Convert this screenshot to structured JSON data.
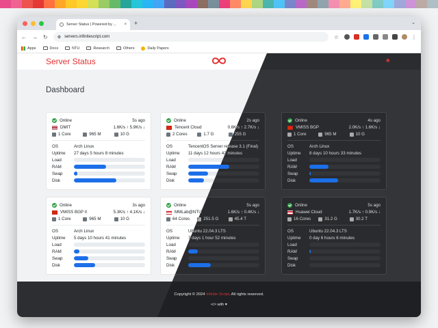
{
  "rainbow": [
    "#e84c8b",
    "#f06292",
    "#ef5350",
    "#e53935",
    "#ff7043",
    "#ffa726",
    "#ffca28",
    "#fdd835",
    "#d4e157",
    "#9ccc65",
    "#66bb6a",
    "#26a69a",
    "#26c6da",
    "#29b6f6",
    "#42a5f5",
    "#5c6bc0",
    "#7e57c2",
    "#ab47bc",
    "#8d6e63",
    "#78909c",
    "#ec407a",
    "#ff8a65",
    "#ffd54f",
    "#aed581",
    "#4db6ac",
    "#4fc3f7",
    "#7986cb",
    "#ba68c8",
    "#a1887f",
    "#90a4ae",
    "#f48fb1",
    "#ffab91",
    "#fff176",
    "#c5e1a5",
    "#80cbc4",
    "#81d4fa",
    "#9fa8da",
    "#ce93d8",
    "#bcaaa4",
    "#b0bec5"
  ],
  "browser": {
    "tab_title": "Server Status | Powered by ...",
    "url": "servers.infinitescript.com",
    "bookmarks": [
      "Apps",
      "Docs",
      "NTU",
      "Research",
      "Others",
      "Daily Papers"
    ]
  },
  "header": {
    "brand": "Server Status",
    "logo_icon": "infinity-icon",
    "settings_icon": "gear-icon"
  },
  "dashboard_title": "Dashboard",
  "labels": {
    "os": "OS",
    "uptime": "Uptime",
    "load": "Load",
    "ram": "RAM",
    "swap": "Swap",
    "disk": "Disk"
  },
  "servers": [
    {
      "status": "Online",
      "ago": "5s ago",
      "name": "DMIT",
      "flag": "us",
      "net": "1.6K/s ↑ 5.9K/s ↓",
      "cores": "1 Core",
      "ram": "965 M",
      "disk": "10 G",
      "os": "Arch Linux",
      "uptime": "27 days 5 hours 8 minutes",
      "load": 0,
      "ram_used": 0.45,
      "swap_used": 0.05,
      "disk_used": 0.6
    },
    {
      "status": "Online",
      "ago": "2s ago",
      "name": "Tencent Cloud",
      "flag": "cn",
      "net": "0.6K/s ↑ 2.7K/s ↓",
      "cores": "2 Cores",
      "ram": "1.7 G",
      "disk": "255 G",
      "os": "TencentOS Server release 3.1 (Final)",
      "uptime": "11 days 12 hours 42 minutes",
      "load": 0,
      "ram_used": 0.58,
      "swap_used": 0.28,
      "disk_used": 0.22
    },
    {
      "status": "Online",
      "ago": "4s ago",
      "name": "VMISS BGP",
      "flag": "hk",
      "net": "2.0K/s ↑ 1.6K/s ↓",
      "cores": "1 Core",
      "ram": "965 M",
      "disk": "10 G",
      "os": "Arch Linux",
      "uptime": "8 days 10 hours 33 minutes",
      "load": 0,
      "ram_used": 0.27,
      "swap_used": 0.02,
      "disk_used": 0.4
    },
    {
      "status": "Online",
      "ago": "3s ago",
      "name": "VMISS BGP II",
      "flag": "hk",
      "net": "5.3K/s ↑ 4.1K/s ↓",
      "cores": "1 Core",
      "ram": "965 M",
      "disk": "10 G",
      "os": "Arch Linux",
      "uptime": "5 days 10 hours 41 minutes",
      "load": 0,
      "ram_used": 0.08,
      "swap_used": 0.2,
      "disk_used": 0.3
    },
    {
      "status": "Online",
      "ago": "5s ago",
      "name": "MMLab@NTU",
      "flag": "sg",
      "net": "1.6K/s ↑ 0.4K/s ↓",
      "cores": "64 Cores",
      "ram": "251.5 G",
      "disk": "45.4 T",
      "os": "Ubuntu 22.04.3 LTS",
      "uptime": "7 days 1 hour 52 minutes",
      "load": 0,
      "ram_used": 0.13,
      "swap_used": 0,
      "disk_used": 0.32
    },
    {
      "status": "Online",
      "ago": "5s ago",
      "name": "Huawei Cloud",
      "flag": "sg",
      "net": "1.7K/s ↑ 0.9K/s ↓",
      "cores": "16 Cores",
      "ram": "31.2 G",
      "disk": "30.2 T",
      "os": "Ubuntu 22.04.3 LTS",
      "uptime": "0 day 6 hours 6 minutes",
      "load": 0,
      "ram_used": 0.02,
      "swap_used": 0,
      "disk_used": 0
    }
  ],
  "footer": {
    "copyright_pre": "Copyright © 2024 ",
    "brand": "Infinite Script",
    "copyright_post": ". All rights reserved.",
    "made_with": "with"
  }
}
